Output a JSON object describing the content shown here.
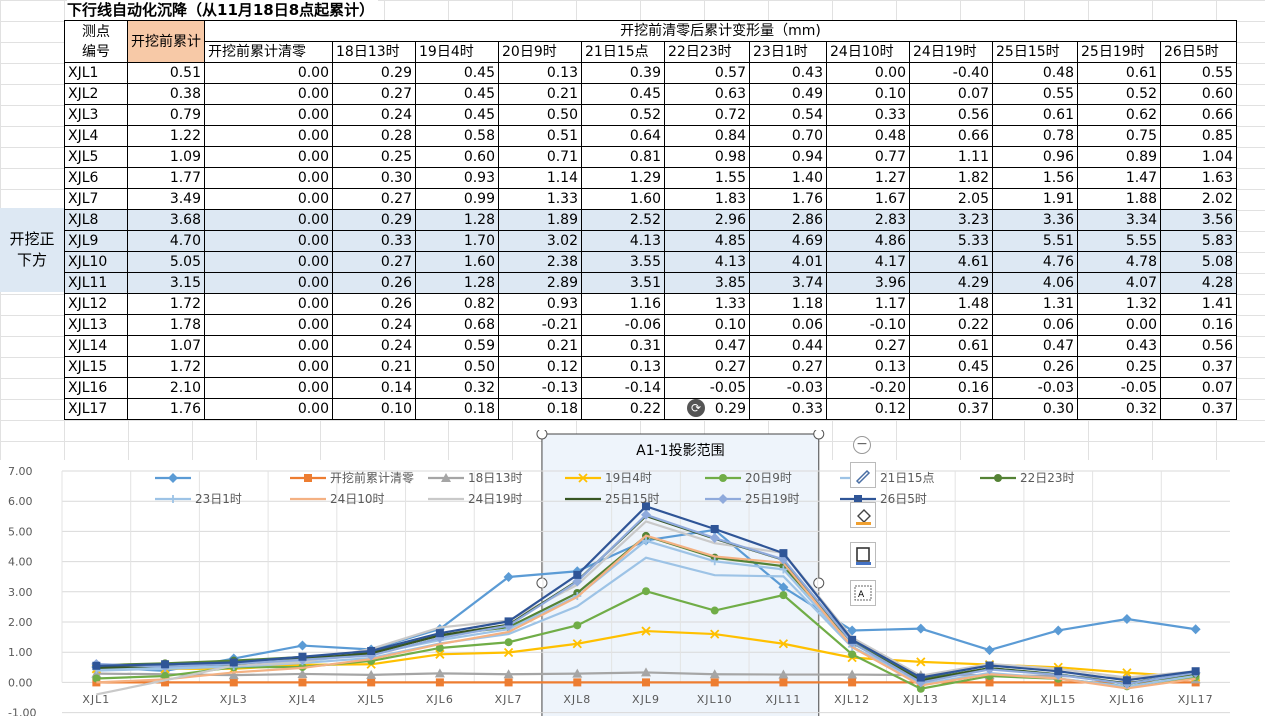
{
  "sheet": {
    "title": "下行线自动化沉降（从11月18日8点起累计）",
    "side_label": "开挖正下方",
    "header": {
      "point_label": "测点编号",
      "acc_label": "开挖前累计",
      "group_label": "开挖前清零后累计变形量（mm)",
      "columns": [
        "开挖前累计清零",
        "18日13时",
        "19日4时",
        "20日9时",
        "21日15点",
        "22日23时",
        "23日1时",
        "24日10时",
        "24日19时",
        "25日15时",
        "25日19时",
        "26日5时"
      ]
    },
    "rows": [
      {
        "id": "XJL1",
        "acc": "0.51",
        "vals": [
          "0.00",
          "0.29",
          "0.45",
          "0.13",
          "0.39",
          "0.57",
          "0.43",
          "0.00",
          "-0.40",
          "0.48",
          "0.61",
          "0.55"
        ]
      },
      {
        "id": "XJL2",
        "acc": "0.38",
        "vals": [
          "0.00",
          "0.27",
          "0.45",
          "0.21",
          "0.45",
          "0.63",
          "0.49",
          "0.10",
          "0.07",
          "0.55",
          "0.52",
          "0.60"
        ]
      },
      {
        "id": "XJL3",
        "acc": "0.79",
        "vals": [
          "0.00",
          "0.24",
          "0.45",
          "0.50",
          "0.52",
          "0.72",
          "0.54",
          "0.33",
          "0.56",
          "0.61",
          "0.62",
          "0.66"
        ]
      },
      {
        "id": "XJL4",
        "acc": "1.22",
        "vals": [
          "0.00",
          "0.28",
          "0.58",
          "0.51",
          "0.64",
          "0.84",
          "0.70",
          "0.48",
          "0.66",
          "0.78",
          "0.75",
          "0.85"
        ]
      },
      {
        "id": "XJL5",
        "acc": "1.09",
        "vals": [
          "0.00",
          "0.25",
          "0.60",
          "0.71",
          "0.81",
          "0.98",
          "0.94",
          "0.77",
          "1.11",
          "0.96",
          "0.89",
          "1.04"
        ]
      },
      {
        "id": "XJL6",
        "acc": "1.77",
        "vals": [
          "0.00",
          "0.30",
          "0.93",
          "1.14",
          "1.29",
          "1.55",
          "1.40",
          "1.27",
          "1.82",
          "1.56",
          "1.47",
          "1.63"
        ]
      },
      {
        "id": "XJL7",
        "acc": "3.49",
        "vals": [
          "0.00",
          "0.27",
          "0.99",
          "1.33",
          "1.60",
          "1.83",
          "1.76",
          "1.67",
          "2.05",
          "1.91",
          "1.88",
          "2.02"
        ]
      },
      {
        "id": "XJL8",
        "acc": "3.68",
        "vals": [
          "0.00",
          "0.29",
          "1.28",
          "1.89",
          "2.52",
          "2.96",
          "2.86",
          "2.83",
          "3.23",
          "3.36",
          "3.34",
          "3.56"
        ]
      },
      {
        "id": "XJL9",
        "acc": "4.70",
        "vals": [
          "0.00",
          "0.33",
          "1.70",
          "3.02",
          "4.13",
          "4.85",
          "4.69",
          "4.86",
          "5.33",
          "5.51",
          "5.55",
          "5.83"
        ]
      },
      {
        "id": "XJL10",
        "acc": "5.05",
        "vals": [
          "0.00",
          "0.27",
          "1.60",
          "2.38",
          "3.55",
          "4.13",
          "4.01",
          "4.17",
          "4.61",
          "4.76",
          "4.78",
          "5.08"
        ]
      },
      {
        "id": "XJL11",
        "acc": "3.15",
        "vals": [
          "0.00",
          "0.26",
          "1.28",
          "2.89",
          "3.51",
          "3.85",
          "3.74",
          "3.96",
          "4.29",
          "4.06",
          "4.07",
          "4.28"
        ]
      },
      {
        "id": "XJL12",
        "acc": "1.72",
        "vals": [
          "0.00",
          "0.26",
          "0.82",
          "0.93",
          "1.16",
          "1.33",
          "1.18",
          "1.17",
          "1.48",
          "1.31",
          "1.32",
          "1.41"
        ]
      },
      {
        "id": "XJL13",
        "acc": "1.78",
        "vals": [
          "0.00",
          "0.24",
          "0.68",
          "-0.21",
          "-0.06",
          "0.10",
          "0.06",
          "-0.10",
          "0.22",
          "0.06",
          "0.00",
          "0.16"
        ]
      },
      {
        "id": "XJL14",
        "acc": "1.07",
        "vals": [
          "0.00",
          "0.24",
          "0.59",
          "0.21",
          "0.31",
          "0.47",
          "0.44",
          "0.27",
          "0.61",
          "0.47",
          "0.43",
          "0.56"
        ]
      },
      {
        "id": "XJL15",
        "acc": "1.72",
        "vals": [
          "0.00",
          "0.21",
          "0.50",
          "0.12",
          "0.13",
          "0.27",
          "0.27",
          "0.13",
          "0.45",
          "0.26",
          "0.25",
          "0.37"
        ]
      },
      {
        "id": "XJL16",
        "acc": "2.10",
        "vals": [
          "0.00",
          "0.14",
          "0.32",
          "-0.13",
          "-0.14",
          "-0.05",
          "-0.03",
          "-0.20",
          "0.16",
          "-0.03",
          "-0.05",
          "0.07"
        ]
      },
      {
        "id": "XJL17",
        "acc": "1.76",
        "vals": [
          "0.00",
          "0.10",
          "0.18",
          "0.18",
          "0.22",
          "0.29",
          "0.33",
          "0.12",
          "0.37",
          "0.30",
          "0.32",
          "0.37"
        ]
      }
    ],
    "highlight_rows": [
      "XJL8",
      "XJL9",
      "XJL10",
      "XJL11"
    ]
  },
  "chart_data": {
    "type": "line",
    "title": "",
    "annotation": "A1-1投影范围",
    "categories": [
      "XJL1",
      "XJL2",
      "XJL3",
      "XJL4",
      "XJL5",
      "XJL6",
      "XJL7",
      "XJL8",
      "XJL9",
      "XJL10",
      "XJL11",
      "XJL12",
      "XJL13",
      "XJL14",
      "XJL15",
      "XJL16",
      "XJL17"
    ],
    "ylim": [
      -1.0,
      7.0
    ],
    "yticks": [
      "-1.00",
      "0.00",
      "1.00",
      "2.00",
      "3.00",
      "4.00",
      "5.00",
      "6.00",
      "7.00"
    ],
    "grid": true,
    "legend_position": "top",
    "highlight_range": [
      "XJL8",
      "XJL11"
    ],
    "series": [
      {
        "name": "",
        "color": "#5b9bd5",
        "marker": "diamond",
        "values": [
          0.51,
          0.38,
          0.79,
          1.22,
          1.09,
          1.77,
          3.49,
          3.68,
          4.7,
          5.05,
          3.15,
          1.72,
          1.78,
          1.07,
          1.72,
          2.1,
          1.76
        ]
      },
      {
        "name": "开挖前累计清零",
        "color": "#ed7d31",
        "marker": "square",
        "values": [
          0,
          0,
          0,
          0,
          0,
          0,
          0,
          0,
          0,
          0,
          0,
          0,
          0,
          0,
          0,
          0,
          0
        ]
      },
      {
        "name": "18日13时",
        "color": "#a5a5a5",
        "marker": "triangle",
        "values": [
          0.29,
          0.27,
          0.24,
          0.28,
          0.25,
          0.3,
          0.27,
          0.29,
          0.33,
          0.27,
          0.26,
          0.26,
          0.24,
          0.24,
          0.21,
          0.14,
          0.1
        ]
      },
      {
        "name": "19日4时",
        "color": "#ffc000",
        "marker": "x",
        "values": [
          0.45,
          0.45,
          0.45,
          0.58,
          0.6,
          0.93,
          0.99,
          1.28,
          1.7,
          1.6,
          1.28,
          0.82,
          0.68,
          0.59,
          0.5,
          0.32,
          0.18
        ]
      },
      {
        "name": "20日9时",
        "color": "#70ad47",
        "marker": "circle",
        "values": [
          0.13,
          0.21,
          0.5,
          0.51,
          0.71,
          1.14,
          1.33,
          1.89,
          3.02,
          2.38,
          2.89,
          0.93,
          -0.21,
          0.21,
          0.12,
          -0.13,
          0.18
        ]
      },
      {
        "name": "21日15点",
        "color": "#9dc3e6",
        "marker": "none",
        "values": [
          0.39,
          0.45,
          0.52,
          0.64,
          0.81,
          1.29,
          1.6,
          2.52,
          4.13,
          3.55,
          3.51,
          1.16,
          -0.06,
          0.31,
          0.13,
          -0.14,
          0.22
        ]
      },
      {
        "name": "22日23时",
        "color": "#548235",
        "marker": "circle",
        "values": [
          0.57,
          0.63,
          0.72,
          0.84,
          0.98,
          1.55,
          1.83,
          2.96,
          4.85,
          4.13,
          3.85,
          1.33,
          0.1,
          0.47,
          0.27,
          -0.05,
          0.29
        ]
      },
      {
        "name": "23日1时",
        "color": "#9dc3e6",
        "marker": "plus",
        "values": [
          0.43,
          0.49,
          0.54,
          0.7,
          0.94,
          1.4,
          1.76,
          2.86,
          4.69,
          4.01,
          3.74,
          1.18,
          0.06,
          0.44,
          0.27,
          -0.03,
          0.33
        ]
      },
      {
        "name": "24日10时",
        "color": "#f4b183",
        "marker": "none",
        "values": [
          0.0,
          0.1,
          0.33,
          0.48,
          0.77,
          1.27,
          1.67,
          2.83,
          4.86,
          4.17,
          3.96,
          1.17,
          -0.1,
          0.27,
          0.13,
          -0.2,
          0.12
        ]
      },
      {
        "name": "24日19时",
        "color": "#c9c9c9",
        "marker": "none",
        "values": [
          -0.4,
          0.07,
          0.56,
          0.66,
          1.11,
          1.82,
          2.05,
          3.23,
          5.33,
          4.61,
          4.29,
          1.48,
          0.22,
          0.61,
          0.45,
          0.16,
          0.37
        ]
      },
      {
        "name": "25日15时",
        "color": "#375623",
        "marker": "none",
        "values": [
          0.48,
          0.55,
          0.61,
          0.78,
          0.96,
          1.56,
          1.91,
          3.36,
          5.51,
          4.76,
          4.06,
          1.31,
          0.06,
          0.47,
          0.26,
          -0.03,
          0.3
        ]
      },
      {
        "name": "25日19时",
        "color": "#8faadc",
        "marker": "diamond",
        "values": [
          0.61,
          0.52,
          0.62,
          0.75,
          0.89,
          1.47,
          1.88,
          3.34,
          5.55,
          4.78,
          4.07,
          1.32,
          0.0,
          0.43,
          0.25,
          -0.05,
          0.32
        ]
      },
      {
        "name": "26日5时",
        "color": "#2f5597",
        "marker": "square",
        "values": [
          0.55,
          0.6,
          0.66,
          0.85,
          1.04,
          1.63,
          2.02,
          3.56,
          5.83,
          5.08,
          4.28,
          1.41,
          0.16,
          0.56,
          0.37,
          0.07,
          0.37
        ]
      }
    ]
  }
}
